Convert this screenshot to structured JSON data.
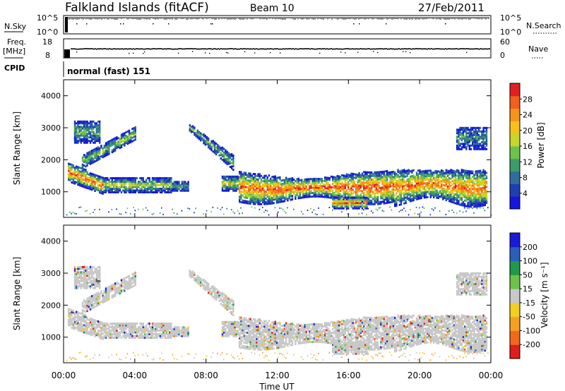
{
  "header": {
    "title": "Falkland Islands (fitACF)",
    "beam": "Beam 10",
    "date": "27/Feb/2011"
  },
  "params": {
    "nsky_label": "N.Sky",
    "nsky_ticks": [
      "10^5",
      "10^0"
    ],
    "nsearch_label": "N.Search",
    "nsearch_ticks": [
      "10^5",
      "10^0"
    ],
    "freq_label": "Freq.",
    "freq_unit": "[MHz]",
    "freq_ticks": [
      "18",
      "8"
    ],
    "nave_label": "Nave",
    "nave_ticks": [
      "60",
      "0"
    ],
    "cpid_label": "CPID",
    "cpid_text": "normal (fast) 151"
  },
  "chart_data": [
    {
      "type": "heatmap",
      "panel": "power",
      "ylabel": "Slant Range [km]",
      "xlabel": "",
      "yticks": [
        "1000",
        "2000",
        "3000",
        "4000"
      ],
      "ylim": [
        200,
        4500
      ],
      "xlim_hours": [
        0,
        24
      ],
      "colorbar": {
        "label": "Power [dB]",
        "ticks": [
          "4",
          "8",
          "12",
          "16",
          "20",
          "24",
          "28"
        ],
        "colors": [
          "#1515e0",
          "#1f3fb0",
          "#2f6e9a",
          "#3f9a6a",
          "#6cc24a",
          "#c6d62a",
          "#f5c21a",
          "#f5941a",
          "#f0601e",
          "#e02020"
        ]
      }
    },
    {
      "type": "heatmap",
      "panel": "velocity",
      "ylabel": "Slant Range [km]",
      "xlabel": "Time UT",
      "yticks": [
        "1000",
        "2000",
        "3000",
        "4000"
      ],
      "xticks": [
        "00:00",
        "04:00",
        "08:00",
        "12:00",
        "16:00",
        "20:00",
        "00:00"
      ],
      "ylim": [
        200,
        4500
      ],
      "xlim_hours": [
        0,
        24
      ],
      "colorbar": {
        "label": "Velocity [m s⁻¹]",
        "ticks": [
          "200",
          "100",
          "50",
          "15",
          "-15",
          "-50",
          "-100",
          "-200"
        ],
        "colors": [
          "#1b1bd6",
          "#2a5fb8",
          "#1f9a4a",
          "#6cc24a",
          "#c8c8c8",
          "#f0d020",
          "#f5a020",
          "#f06a1e",
          "#e01c1c"
        ]
      }
    }
  ]
}
